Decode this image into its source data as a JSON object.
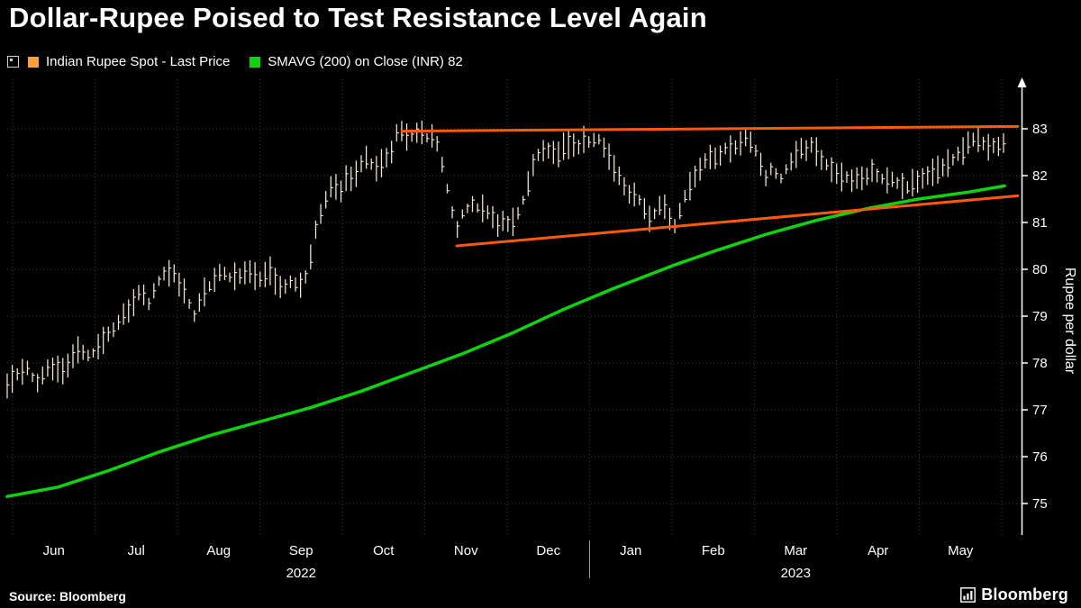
{
  "title": "Dollar-Rupee Poised to Test Resistance Level Again",
  "source": "Source: Bloomberg",
  "brand": "Bloomberg",
  "legend": {
    "items": [
      {
        "label": "Indian Rupee Spot - Last Price",
        "color": "#f7a33a"
      },
      {
        "label": "SMAVG (200)  on Close (INR) 82",
        "color": "#0ed30e"
      }
    ]
  },
  "chart_data": {
    "type": "line",
    "title": "Dollar-Rupee Poised to Test Resistance Level Again",
    "xlabel": "",
    "ylabel": "Rupee per dollar",
    "ylim": [
      74.5,
      83.8
    ],
    "yticks": [
      75,
      76,
      77,
      78,
      79,
      80,
      81,
      82,
      83
    ],
    "grid": true,
    "legend_position": "top-left",
    "x_months": [
      "Jun",
      "Jul",
      "Aug",
      "Sep",
      "Oct",
      "Nov",
      "Dec",
      "Jan",
      "Feb",
      "Mar",
      "Apr",
      "May"
    ],
    "x_years": [
      {
        "label": "2022",
        "under_month": "Sep"
      },
      {
        "label": "2023",
        "under_month": "Mar"
      }
    ],
    "series": [
      {
        "name": "Indian Rupee Spot - Last Price",
        "style": "hlc-bars",
        "color": "#f4ead6",
        "points": [
          [
            0.0,
            77.55
          ],
          [
            0.012,
            77.75
          ],
          [
            0.02,
            77.85
          ],
          [
            0.03,
            77.6
          ],
          [
            0.042,
            77.95
          ],
          [
            0.055,
            77.8
          ],
          [
            0.068,
            78.3
          ],
          [
            0.08,
            78.15
          ],
          [
            0.093,
            78.45
          ],
          [
            0.105,
            78.7
          ],
          [
            0.118,
            79.1
          ],
          [
            0.131,
            79.5
          ],
          [
            0.14,
            79.3
          ],
          [
            0.152,
            79.85
          ],
          [
            0.164,
            79.9
          ],
          [
            0.175,
            79.55
          ],
          [
            0.184,
            79.0
          ],
          [
            0.196,
            79.6
          ],
          [
            0.21,
            79.9
          ],
          [
            0.222,
            79.85
          ],
          [
            0.236,
            79.95
          ],
          [
            0.25,
            79.8
          ],
          [
            0.26,
            79.95
          ],
          [
            0.27,
            79.6
          ],
          [
            0.28,
            79.75
          ],
          [
            0.289,
            79.65
          ],
          [
            0.296,
            79.9
          ],
          [
            0.305,
            80.9
          ],
          [
            0.313,
            81.4
          ],
          [
            0.322,
            81.85
          ],
          [
            0.329,
            81.6
          ],
          [
            0.336,
            82.0
          ],
          [
            0.343,
            81.9
          ],
          [
            0.35,
            82.3
          ],
          [
            0.357,
            82.4
          ],
          [
            0.363,
            82.05
          ],
          [
            0.369,
            82.3
          ],
          [
            0.375,
            82.35
          ],
          [
            0.381,
            82.6
          ],
          [
            0.387,
            83.15
          ],
          [
            0.393,
            82.8
          ],
          [
            0.4,
            82.85
          ],
          [
            0.407,
            83.0
          ],
          [
            0.413,
            82.75
          ],
          [
            0.42,
            82.9
          ],
          [
            0.427,
            82.55
          ],
          [
            0.433,
            81.9
          ],
          [
            0.438,
            81.4
          ],
          [
            0.443,
            80.75
          ],
          [
            0.449,
            81.15
          ],
          [
            0.456,
            81.4
          ],
          [
            0.463,
            81.3
          ],
          [
            0.47,
            81.25
          ],
          [
            0.478,
            81.15
          ],
          [
            0.484,
            80.9
          ],
          [
            0.491,
            81.05
          ],
          [
            0.497,
            80.85
          ],
          [
            0.504,
            81.2
          ],
          [
            0.511,
            81.55
          ],
          [
            0.518,
            82.2
          ],
          [
            0.527,
            82.5
          ],
          [
            0.536,
            82.6
          ],
          [
            0.543,
            82.4
          ],
          [
            0.549,
            82.6
          ],
          [
            0.556,
            82.7
          ],
          [
            0.562,
            82.55
          ],
          [
            0.569,
            82.8
          ],
          [
            0.576,
            82.7
          ],
          [
            0.583,
            82.85
          ],
          [
            0.589,
            82.6
          ],
          [
            0.596,
            82.35
          ],
          [
            0.602,
            82.05
          ],
          [
            0.609,
            81.75
          ],
          [
            0.616,
            81.5
          ],
          [
            0.622,
            81.6
          ],
          [
            0.629,
            81.3
          ],
          [
            0.635,
            81.05
          ],
          [
            0.641,
            81.3
          ],
          [
            0.647,
            81.5
          ],
          [
            0.653,
            81.15
          ],
          [
            0.659,
            80.95
          ],
          [
            0.665,
            81.3
          ],
          [
            0.671,
            81.6
          ],
          [
            0.678,
            81.95
          ],
          [
            0.685,
            82.2
          ],
          [
            0.691,
            82.4
          ],
          [
            0.698,
            82.3
          ],
          [
            0.705,
            82.5
          ],
          [
            0.712,
            82.6
          ],
          [
            0.718,
            82.55
          ],
          [
            0.725,
            82.7
          ],
          [
            0.731,
            82.8
          ],
          [
            0.738,
            82.6
          ],
          [
            0.744,
            82.3
          ],
          [
            0.75,
            81.95
          ],
          [
            0.756,
            82.2
          ],
          [
            0.762,
            81.85
          ],
          [
            0.769,
            82.1
          ],
          [
            0.776,
            82.4
          ],
          [
            0.783,
            82.6
          ],
          [
            0.789,
            82.5
          ],
          [
            0.795,
            82.65
          ],
          [
            0.802,
            82.45
          ],
          [
            0.809,
            82.2
          ],
          [
            0.816,
            82.1
          ],
          [
            0.822,
            82.0
          ],
          [
            0.829,
            81.95
          ],
          [
            0.836,
            81.9
          ],
          [
            0.842,
            82.0
          ],
          [
            0.849,
            81.95
          ],
          [
            0.856,
            82.1
          ],
          [
            0.862,
            81.9
          ],
          [
            0.869,
            81.85
          ],
          [
            0.875,
            81.95
          ],
          [
            0.882,
            81.8
          ],
          [
            0.889,
            81.75
          ],
          [
            0.896,
            81.85
          ],
          [
            0.902,
            81.9
          ],
          [
            0.909,
            82.0
          ],
          [
            0.916,
            82.05
          ],
          [
            0.922,
            82.15
          ],
          [
            0.929,
            82.3
          ],
          [
            0.936,
            82.4
          ],
          [
            0.942,
            82.5
          ],
          [
            0.949,
            82.7
          ],
          [
            0.956,
            82.8
          ],
          [
            0.962,
            82.75
          ],
          [
            0.969,
            82.65
          ],
          [
            0.976,
            82.6
          ],
          [
            0.984,
            82.65
          ]
        ]
      },
      {
        "name": "SMAVG (200) on Close (INR) 82",
        "style": "line",
        "color": "#0ed30e",
        "width": 3.5,
        "points": [
          [
            0.0,
            75.15
          ],
          [
            0.05,
            75.35
          ],
          [
            0.1,
            75.7
          ],
          [
            0.15,
            76.1
          ],
          [
            0.2,
            76.45
          ],
          [
            0.25,
            76.75
          ],
          [
            0.3,
            77.05
          ],
          [
            0.35,
            77.4
          ],
          [
            0.4,
            77.8
          ],
          [
            0.45,
            78.2
          ],
          [
            0.5,
            78.65
          ],
          [
            0.55,
            79.15
          ],
          [
            0.6,
            79.6
          ],
          [
            0.63,
            79.85
          ],
          [
            0.66,
            80.1
          ],
          [
            0.7,
            80.4
          ],
          [
            0.75,
            80.75
          ],
          [
            0.8,
            81.05
          ],
          [
            0.85,
            81.3
          ],
          [
            0.9,
            81.5
          ],
          [
            0.95,
            81.65
          ],
          [
            0.985,
            81.78
          ]
        ]
      },
      {
        "name": "Resistance trendline",
        "style": "line",
        "color": "#fb5a0e",
        "width": 3,
        "points": [
          [
            0.39,
            82.95
          ],
          [
            0.998,
            83.05
          ]
        ]
      },
      {
        "name": "Support trendline",
        "style": "line",
        "color": "#fb5a0e",
        "width": 3,
        "points": [
          [
            0.444,
            80.5
          ],
          [
            0.998,
            81.57
          ]
        ]
      }
    ]
  }
}
